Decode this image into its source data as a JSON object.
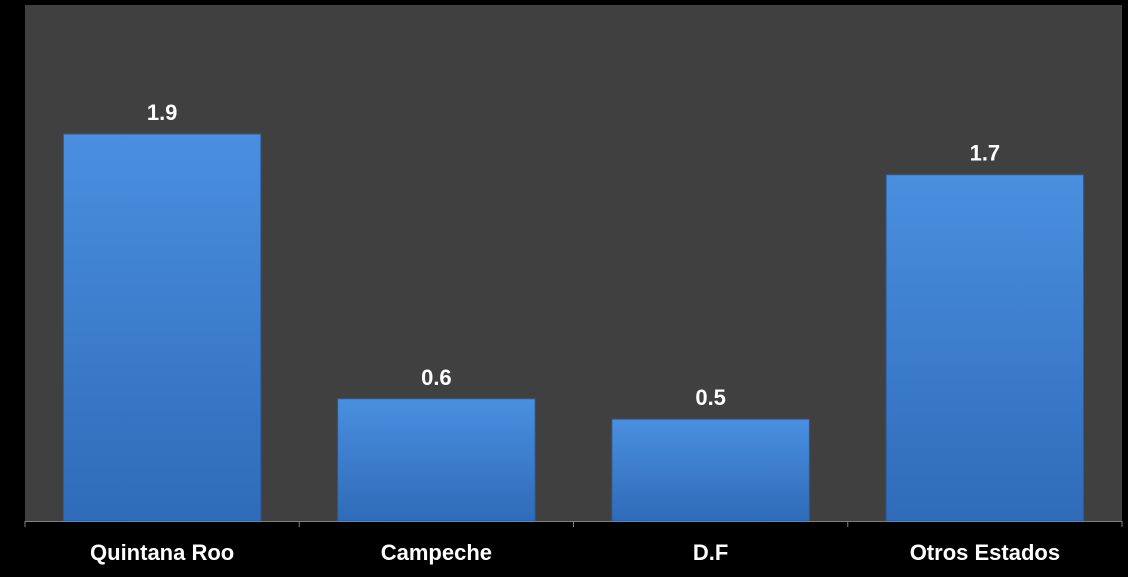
{
  "colors": {
    "page_background": "#000000",
    "plot_background": "#404040",
    "bar_top": "#4a8fe0",
    "bar_bottom": "#2f6bb8",
    "axis": "#7f7f7f",
    "text": "#ffffff"
  },
  "chart_data": {
    "type": "bar",
    "title": "",
    "xlabel": "",
    "ylabel": "",
    "categories": [
      "Quintana Roo",
      "Campeche",
      "D.F",
      "Otros Estados"
    ],
    "values": [
      1.9,
      0.6,
      0.5,
      1.7
    ],
    "data_labels": [
      "1.9",
      "0.6",
      "0.5",
      "1.7"
    ],
    "ylim": [
      0,
      1.9
    ],
    "grid": false,
    "legend": "none",
    "y_axis_visible": false
  }
}
